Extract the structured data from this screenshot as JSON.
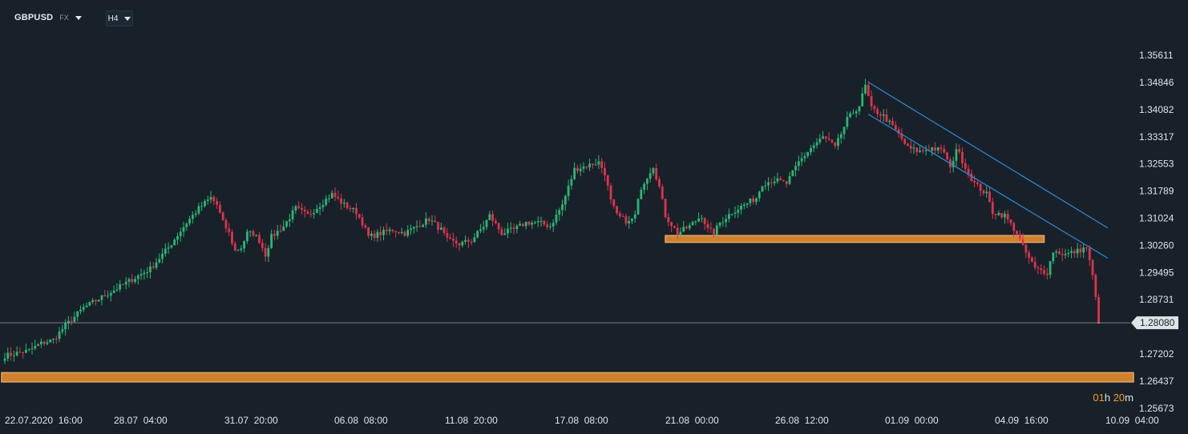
{
  "header": {
    "symbol": "GBPUSD",
    "market": "FX",
    "timeframe": "H4"
  },
  "countdown": {
    "hours": "01",
    "h_unit": "h",
    "minutes": "20",
    "m_unit": "m"
  },
  "colors": {
    "background": "#18212a",
    "up_candle": "#2bb673",
    "down_candle": "#e0324b",
    "channel": "#2e8bd6",
    "zone_fill": "#e08a2e",
    "zone_border": "#f4b46a",
    "price_line": "#b7c0c8",
    "price_tag": "#dfe4e9"
  },
  "chart_data": {
    "type": "candlestick",
    "interval": "4h",
    "y_ticks": [
      "1.35611",
      "1.34846",
      "1.34082",
      "1.33317",
      "1.32553",
      "1.31789",
      "1.31024",
      "1.30260",
      "1.29495",
      "1.28731",
      "1.27202",
      "1.26437",
      "1.25673"
    ],
    "ylim": [
      1.2567,
      1.3595
    ],
    "x_ticks": [
      "22.07.2020  16:00",
      "28.07  04:00",
      "31.07  20:00",
      "06.08  08:00",
      "11.08  20:00",
      "17.08  08:00",
      "21.08  00:00",
      "26.08  12:00",
      "01.09  00:00",
      "04.09  16:00",
      "10.09  04:00"
    ],
    "last_price": "1.28080",
    "close_path": [
      [
        0,
        1.2715
      ],
      [
        8,
        1.273
      ],
      [
        12,
        1.275
      ],
      [
        16,
        1.276
      ],
      [
        20,
        1.28
      ],
      [
        26,
        1.285
      ],
      [
        30,
        1.287
      ],
      [
        36,
        1.29
      ],
      [
        42,
        1.293
      ],
      [
        48,
        1.296
      ],
      [
        54,
        1.302
      ],
      [
        60,
        1.309
      ],
      [
        64,
        1.313
      ],
      [
        68,
        1.316
      ],
      [
        70,
        1.314
      ],
      [
        72,
        1.309
      ],
      [
        74,
        1.306
      ],
      [
        76,
        1.301
      ],
      [
        78,
        1.302
      ],
      [
        80,
        1.306
      ],
      [
        82,
        1.306
      ],
      [
        84,
        1.304
      ],
      [
        86,
        1.3
      ],
      [
        88,
        1.305
      ],
      [
        92,
        1.308
      ],
      [
        96,
        1.313
      ],
      [
        100,
        1.311
      ],
      [
        104,
        1.314
      ],
      [
        108,
        1.317
      ],
      [
        112,
        1.314
      ],
      [
        116,
        1.312
      ],
      [
        118,
        1.309
      ],
      [
        120,
        1.305
      ],
      [
        124,
        1.306
      ],
      [
        128,
        1.307
      ],
      [
        132,
        1.306
      ],
      [
        136,
        1.308
      ],
      [
        140,
        1.31
      ],
      [
        144,
        1.307
      ],
      [
        146,
        1.304
      ],
      [
        150,
        1.303
      ],
      [
        154,
        1.304
      ],
      [
        158,
        1.308
      ],
      [
        160,
        1.311
      ],
      [
        164,
        1.306
      ],
      [
        168,
        1.307
      ],
      [
        172,
        1.309
      ],
      [
        176,
        1.309
      ],
      [
        180,
        1.308
      ],
      [
        184,
        1.314
      ],
      [
        188,
        1.324
      ],
      [
        192,
        1.325
      ],
      [
        196,
        1.326
      ],
      [
        198,
        1.323
      ],
      [
        200,
        1.315
      ],
      [
        202,
        1.311
      ],
      [
        206,
        1.309
      ],
      [
        208,
        1.311
      ],
      [
        210,
        1.319
      ],
      [
        214,
        1.325
      ],
      [
        216,
        1.319
      ],
      [
        218,
        1.311
      ],
      [
        222,
        1.306
      ],
      [
        226,
        1.308
      ],
      [
        230,
        1.311
      ],
      [
        232,
        1.307
      ],
      [
        234,
        1.306
      ],
      [
        236,
        1.309
      ],
      [
        240,
        1.312
      ],
      [
        244,
        1.314
      ],
      [
        248,
        1.316
      ],
      [
        250,
        1.32
      ],
      [
        254,
        1.321
      ],
      [
        258,
        1.32
      ],
      [
        262,
        1.326
      ],
      [
        266,
        1.33
      ],
      [
        270,
        1.333
      ],
      [
        272,
        1.332
      ],
      [
        274,
        1.33
      ],
      [
        278,
        1.338
      ],
      [
        282,
        1.342
      ],
      [
        284,
        1.3475
      ],
      [
        286,
        1.341
      ],
      [
        290,
        1.339
      ],
      [
        294,
        1.335
      ],
      [
        298,
        1.33
      ],
      [
        302,
        1.329
      ],
      [
        306,
        1.33
      ],
      [
        310,
        1.329
      ],
      [
        312,
        1.324
      ],
      [
        314,
        1.33
      ],
      [
        318,
        1.323
      ],
      [
        320,
        1.32
      ],
      [
        324,
        1.317
      ],
      [
        326,
        1.312
      ],
      [
        330,
        1.311
      ],
      [
        334,
        1.306
      ],
      [
        336,
        1.302
      ],
      [
        340,
        1.296
      ],
      [
        344,
        1.295
      ],
      [
        346,
        1.301
      ],
      [
        350,
        1.3
      ],
      [
        354,
        1.301
      ],
      [
        357,
        1.302
      ],
      [
        359,
        1.294
      ],
      [
        361,
        1.2812
      ]
    ]
  },
  "channel_lines": [
    {
      "from": [
        285,
        1.3485
      ],
      "to": [
        364,
        1.3075
      ]
    },
    {
      "from": [
        285,
        1.3395
      ],
      "to": [
        364,
        1.299
      ]
    }
  ],
  "support_zones": [
    {
      "from_bar": 218,
      "to_bar": 343,
      "low": 1.3039,
      "high": 1.3049
    },
    {
      "from_bar": 0,
      "to_bar": 362,
      "low": 1.2646,
      "high": 1.2663
    }
  ]
}
